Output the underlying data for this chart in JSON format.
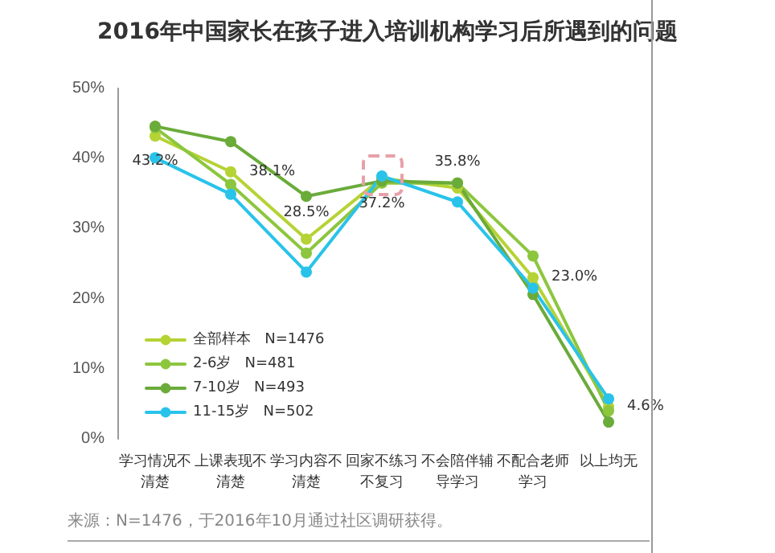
{
  "chart_data": {
    "type": "line",
    "title": "2016年中国家长在孩子进入培训机构学习后所遇到的问题",
    "categories": [
      "学习情况不清楚",
      "上课表现不清楚",
      "学习内容不清楚",
      "回家不练习不复习",
      "不会陪伴辅导学习",
      "不配合老师学习",
      "以上均无"
    ],
    "series": [
      {
        "name": "全部样本   N=1476",
        "color": "#b5d334",
        "values": [
          43.2,
          38.1,
          28.5,
          37.2,
          35.8,
          23.0,
          4.6
        ],
        "value_labels": [
          "43.2%",
          "38.1%",
          "28.5%",
          "37.2%",
          "35.8%",
          "23.0%",
          "4.6%"
        ]
      },
      {
        "name": "2-6岁   N=481",
        "color": "#8cc63f",
        "values": [
          44.4,
          36.3,
          26.5,
          36.5,
          36.5,
          26.1,
          4.0
        ]
      },
      {
        "name": "7-10岁   N=493",
        "color": "#6aab3a",
        "values": [
          44.6,
          42.4,
          34.6,
          36.8,
          36.5,
          20.6,
          2.4
        ]
      },
      {
        "name": "11-15岁   N=502",
        "color": "#29c3ea",
        "values": [
          40.1,
          34.9,
          23.8,
          37.5,
          33.8,
          21.5,
          5.7
        ]
      }
    ],
    "ylim": [
      0,
      50
    ],
    "yticks": [
      {
        "value": 0,
        "label": "0%"
      },
      {
        "value": 10,
        "label": "10%"
      },
      {
        "value": 20,
        "label": "20%"
      },
      {
        "value": 30,
        "label": "30%"
      },
      {
        "value": 40,
        "label": "40%"
      },
      {
        "value": 50,
        "label": "50%"
      }
    ],
    "grid": false,
    "legend": "bottom left",
    "marker": "circle",
    "line_style": "solid",
    "annotations": [
      "来源：N=1476，于2016年10月通过社区调研获得。"
    ]
  }
}
